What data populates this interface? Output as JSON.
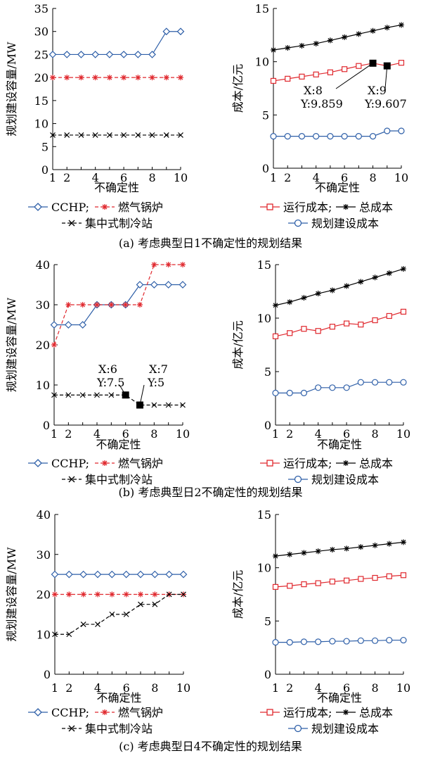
{
  "figure": {
    "captions": [
      "(a) 考虑典型日1不确定性的规划结果",
      "(b) 考虑典型日2不确定性的规划结果",
      "(c) 考虑典型日4不确定性的规划结果"
    ]
  },
  "legend_left": {
    "ccchp": "CCHP;",
    "boiler": "燃气锅炉",
    "chiller": "集中式制冷站"
  },
  "legend_right": {
    "operating": "运行成本;",
    "total": "总成本",
    "construction": "规划建设成本"
  },
  "colors": {
    "blue": "#2e5fa8",
    "red": "#e0282e",
    "black": "#000000"
  },
  "chart_data": [
    {
      "id": "a-left",
      "type": "line",
      "xlabel": "不确定性",
      "ylabel": "规划建设容量/MW",
      "x": [
        1,
        2,
        3,
        4,
        5,
        6,
        7,
        8,
        9,
        10
      ],
      "xticks": [
        "1",
        "2",
        "4",
        "6",
        "8",
        "10"
      ],
      "ylim": [
        0,
        35
      ],
      "yticks": [
        "0",
        "5",
        "10",
        "15",
        "20",
        "25",
        "30",
        "35"
      ],
      "series": [
        {
          "name": "CCHP",
          "marker": "diamond",
          "color": "#2e5fa8",
          "dash": false,
          "values": [
            25,
            25,
            25,
            25,
            25,
            25,
            25,
            25,
            30,
            30
          ]
        },
        {
          "name": "燃气锅炉",
          "marker": "asterisk",
          "color": "#e0282e",
          "dash": true,
          "values": [
            20,
            20,
            20,
            20,
            20,
            20,
            20,
            20,
            20,
            20
          ]
        },
        {
          "name": "集中式制冷站",
          "marker": "x",
          "color": "#000000",
          "dash": true,
          "values": [
            7.5,
            7.5,
            7.5,
            7.5,
            7.5,
            7.5,
            7.5,
            7.5,
            7.5,
            7.5
          ]
        }
      ],
      "annotations": []
    },
    {
      "id": "a-right",
      "type": "line",
      "xlabel": "不确定性",
      "ylabel": "成本/亿元",
      "x": [
        1,
        2,
        3,
        4,
        5,
        6,
        7,
        8,
        9,
        10
      ],
      "xticks": [
        "1",
        "2",
        "4",
        "6",
        "8",
        "10"
      ],
      "ylim": [
        0,
        15
      ],
      "yticks": [
        "0",
        "5",
        "10",
        "15"
      ],
      "series": [
        {
          "name": "总成本",
          "marker": "asterisk",
          "color": "#000000",
          "dash": false,
          "values": [
            11.1,
            11.3,
            11.5,
            11.7,
            12.0,
            12.3,
            12.6,
            12.9,
            13.2,
            13.45
          ]
        },
        {
          "name": "运行成本",
          "marker": "square",
          "color": "#e0282e",
          "dash": false,
          "values": [
            8.2,
            8.4,
            8.6,
            8.8,
            9.0,
            9.3,
            9.6,
            9.859,
            9.607,
            9.9
          ]
        },
        {
          "name": "规划建设成本",
          "marker": "circle",
          "color": "#2e5fa8",
          "dash": false,
          "values": [
            3.0,
            3.0,
            3.0,
            3.0,
            3.0,
            3.0,
            3.0,
            3.0,
            3.5,
            3.5
          ]
        }
      ],
      "annotations": [
        {
          "x": 8,
          "y": 9.859,
          "line1": "X:8",
          "line2": "Y:9.859"
        },
        {
          "x": 9,
          "y": 9.607,
          "line1": "X:9",
          "line2": "Y:9.607"
        }
      ]
    },
    {
      "id": "b-left",
      "type": "line",
      "xlabel": "不确定性",
      "ylabel": "规划建设容量/MW",
      "x": [
        1,
        2,
        3,
        4,
        5,
        6,
        7,
        8,
        9,
        10
      ],
      "xticks": [
        "1",
        "2",
        "4",
        "6",
        "8",
        "10"
      ],
      "ylim": [
        0,
        40
      ],
      "yticks": [
        "0",
        "10",
        "20",
        "30",
        "40"
      ],
      "series": [
        {
          "name": "CCHP",
          "marker": "diamond",
          "color": "#2e5fa8",
          "dash": false,
          "values": [
            25,
            25,
            25,
            30,
            30,
            30,
            35,
            35,
            35,
            35
          ]
        },
        {
          "name": "燃气锅炉",
          "marker": "asterisk",
          "color": "#e0282e",
          "dash": true,
          "values": [
            20,
            30,
            30,
            30,
            30,
            30,
            30,
            40,
            40,
            40
          ]
        },
        {
          "name": "集中式制冷站",
          "marker": "x",
          "color": "#000000",
          "dash": true,
          "values": [
            7.5,
            7.5,
            7.5,
            7.5,
            7.5,
            7.5,
            5,
            5,
            5,
            5
          ]
        }
      ],
      "annotations": [
        {
          "x": 6,
          "y": 7.5,
          "line1": "X:6",
          "line2": "Y:7.5"
        },
        {
          "x": 7,
          "y": 5,
          "line1": "X:7",
          "line2": "Y:5"
        }
      ]
    },
    {
      "id": "b-right",
      "type": "line",
      "xlabel": "不确定性",
      "ylabel": "成本/亿元",
      "x": [
        1,
        2,
        3,
        4,
        5,
        6,
        7,
        8,
        9,
        10
      ],
      "xticks": [
        "1",
        "2",
        "4",
        "6",
        "8",
        "10"
      ],
      "ylim": [
        0,
        15
      ],
      "yticks": [
        "0",
        "5",
        "10",
        "15"
      ],
      "series": [
        {
          "name": "总成本",
          "marker": "asterisk",
          "color": "#000000",
          "dash": false,
          "values": [
            11.2,
            11.5,
            11.9,
            12.3,
            12.6,
            13.0,
            13.4,
            13.8,
            14.2,
            14.6
          ]
        },
        {
          "name": "运行成本",
          "marker": "square",
          "color": "#e0282e",
          "dash": false,
          "values": [
            8.3,
            8.6,
            9.0,
            8.8,
            9.2,
            9.5,
            9.4,
            9.8,
            10.2,
            10.6
          ]
        },
        {
          "name": "规划建设成本",
          "marker": "circle",
          "color": "#2e5fa8",
          "dash": false,
          "values": [
            3.0,
            3.0,
            3.0,
            3.5,
            3.5,
            3.5,
            4.0,
            4.0,
            4.0,
            4.0
          ]
        }
      ],
      "annotations": []
    },
    {
      "id": "c-left",
      "type": "line",
      "xlabel": "不确定性",
      "ylabel": "规划建设容量/MW",
      "x": [
        1,
        2,
        3,
        4,
        5,
        6,
        7,
        8,
        9,
        10
      ],
      "xticks": [
        "1",
        "2",
        "4",
        "6",
        "8",
        "10"
      ],
      "ylim": [
        0,
        40
      ],
      "yticks": [
        "0",
        "10",
        "20",
        "30",
        "40"
      ],
      "series": [
        {
          "name": "CCHP",
          "marker": "diamond",
          "color": "#2e5fa8",
          "dash": false,
          "values": [
            25,
            25,
            25,
            25,
            25,
            25,
            25,
            25,
            25,
            25
          ]
        },
        {
          "name": "燃气锅炉",
          "marker": "asterisk",
          "color": "#e0282e",
          "dash": true,
          "values": [
            20,
            20,
            20,
            20,
            20,
            20,
            20,
            20,
            20,
            20
          ]
        },
        {
          "name": "集中式制冷站",
          "marker": "x",
          "color": "#000000",
          "dash": true,
          "values": [
            10,
            10,
            12.5,
            12.5,
            15,
            15,
            17.5,
            17.5,
            20,
            20
          ]
        }
      ],
      "annotations": []
    },
    {
      "id": "c-right",
      "type": "line",
      "xlabel": "不确定性",
      "ylabel": "成本/亿元",
      "x": [
        1,
        2,
        3,
        4,
        5,
        6,
        7,
        8,
        9,
        10
      ],
      "xticks": [
        "1",
        "2",
        "4",
        "6",
        "8",
        "10"
      ],
      "ylim": [
        0,
        15
      ],
      "yticks": [
        "0",
        "5",
        "10",
        "15"
      ],
      "series": [
        {
          "name": "总成本",
          "marker": "asterisk",
          "color": "#000000",
          "dash": false,
          "values": [
            11.1,
            11.25,
            11.4,
            11.55,
            11.7,
            11.8,
            11.95,
            12.1,
            12.25,
            12.4
          ]
        },
        {
          "name": "运行成本",
          "marker": "square",
          "color": "#e0282e",
          "dash": false,
          "values": [
            8.2,
            8.3,
            8.45,
            8.55,
            8.7,
            8.8,
            8.95,
            9.05,
            9.2,
            9.3
          ]
        },
        {
          "name": "规划建设成本",
          "marker": "circle",
          "color": "#2e5fa8",
          "dash": false,
          "values": [
            3.0,
            3.0,
            3.05,
            3.05,
            3.1,
            3.1,
            3.15,
            3.15,
            3.2,
            3.2
          ]
        }
      ],
      "annotations": []
    }
  ]
}
